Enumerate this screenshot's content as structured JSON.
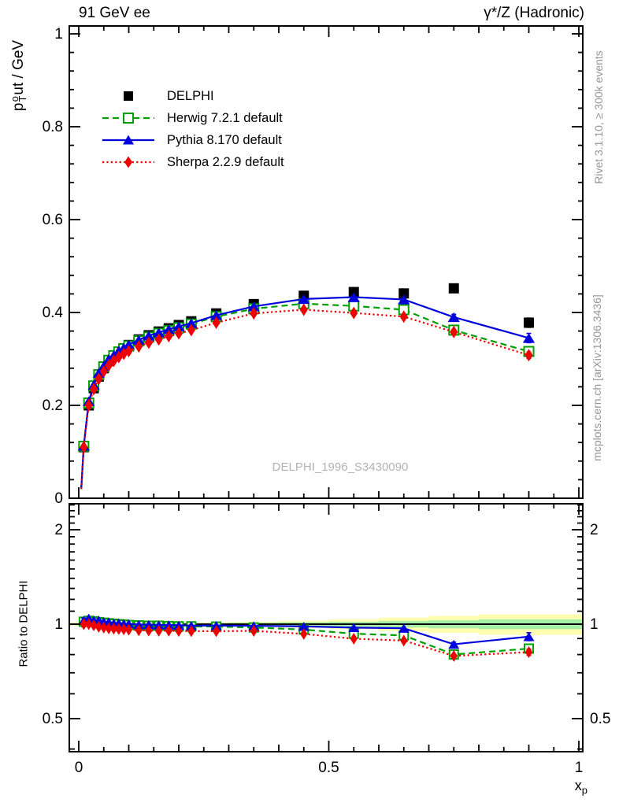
{
  "page": {
    "title_left": "91 GeV ee",
    "title_right": "γ*/Z (Hadronic)",
    "watermark": "DELPHI_1996_S3430090",
    "rivet_note": "Rivet 3.1.10, ≥ 300k events",
    "mcplots_note": "mcplots.cern.ch [arXiv:1306.3436]"
  },
  "chart_data": {
    "type": "line",
    "title": "91 GeV ee — γ*/Z (Hadronic)",
    "xlabel": "x_p",
    "xlabel_parts": {
      "base": "x",
      "sub": "p"
    },
    "xlim": [
      -0.019,
      1.008
    ],
    "xticks": [
      0,
      0.5,
      1
    ],
    "xtick_labels": [
      "0",
      "0.5",
      "1"
    ],
    "grid": false,
    "legend_position": "upper-left",
    "main_panel": {
      "ylabel": "p_T^out / GeV",
      "ylabel_parts": {
        "base": "p",
        "sup": "o",
        "sub": "T",
        "rest": "ut / GeV"
      },
      "yscale": "linear",
      "ylim": [
        0,
        1.017
      ],
      "yticks": [
        0,
        0.2,
        0.4,
        0.6,
        0.8,
        1
      ],
      "ytick_labels": [
        "0",
        "0.2",
        "0.4",
        "0.6",
        "0.8",
        "1"
      ],
      "minor_tick_step": 0.04
    },
    "ratio_panel": {
      "ylabel": "Ratio to DELPHI",
      "yscale": "log",
      "ylim": [
        0.39,
        2.42
      ],
      "yticks": [
        0.5,
        1,
        2
      ],
      "ytick_labels": [
        "0.5",
        "1",
        "2"
      ],
      "minor_ticks": [
        0.4,
        0.6,
        0.7,
        0.8,
        0.9,
        1.1,
        1.2,
        1.3,
        1.4,
        1.5,
        1.6,
        1.7,
        1.8,
        1.9,
        2.1,
        2.2,
        2.3,
        2.4
      ],
      "reference_line": 1,
      "uncertainty_bands": [
        {
          "x0": 0.0,
          "x1": 0.3,
          "yellow": 0.012,
          "green": 0.008
        },
        {
          "x0": 0.3,
          "x1": 0.4,
          "yellow": 0.018,
          "green": 0.011
        },
        {
          "x0": 0.4,
          "x1": 0.5,
          "yellow": 0.026,
          "green": 0.014
        },
        {
          "x0": 0.5,
          "x1": 0.6,
          "yellow": 0.036,
          "green": 0.018
        },
        {
          "x0": 0.6,
          "x1": 0.7,
          "yellow": 0.05,
          "green": 0.024
        },
        {
          "x0": 0.7,
          "x1": 0.8,
          "yellow": 0.062,
          "green": 0.03
        },
        {
          "x0": 0.8,
          "x1": 1.0,
          "yellow": 0.075,
          "green": 0.036
        }
      ],
      "band_colors": {
        "yellow": "#ffffb0",
        "green": "#a6f0a6"
      }
    },
    "x": [
      0.01,
      0.02,
      0.03,
      0.04,
      0.05,
      0.06,
      0.07,
      0.08,
      0.09,
      0.1,
      0.12,
      0.14,
      0.16,
      0.18,
      0.2,
      0.225,
      0.275,
      0.35,
      0.45,
      0.55,
      0.65,
      0.75,
      0.9
    ],
    "series": [
      {
        "name": "DELPHI",
        "kind": "data",
        "color": "#000000",
        "line": "none",
        "marker": "square-filled",
        "values": [
          0.11,
          0.2,
          0.237,
          0.262,
          0.28,
          0.295,
          0.306,
          0.315,
          0.323,
          0.33,
          0.342,
          0.351,
          0.359,
          0.366,
          0.373,
          0.381,
          0.398,
          0.418,
          0.436,
          0.444,
          0.441,
          0.452,
          0.378
        ],
        "errors": [
          0.003,
          0.003,
          0.003,
          0.003,
          0.003,
          0.003,
          0.003,
          0.003,
          0.003,
          0.003,
          0.003,
          0.003,
          0.003,
          0.003,
          0.003,
          0.003,
          0.004,
          0.004,
          0.005,
          0.006,
          0.007,
          0.009,
          0.01
        ]
      },
      {
        "name": "Herwig 7.2.1 default",
        "kind": "mc",
        "color": "#00a000",
        "line": "dashed",
        "marker": "square-open",
        "values": [
          0.112,
          0.205,
          0.242,
          0.266,
          0.283,
          0.297,
          0.307,
          0.315,
          0.322,
          0.328,
          0.339,
          0.347,
          0.355,
          0.361,
          0.367,
          0.375,
          0.391,
          0.408,
          0.419,
          0.414,
          0.406,
          0.362,
          0.316
        ],
        "errors": [
          0.002,
          0.002,
          0.002,
          0.002,
          0.002,
          0.002,
          0.002,
          0.002,
          0.002,
          0.002,
          0.002,
          0.002,
          0.002,
          0.002,
          0.002,
          0.002,
          0.002,
          0.002,
          0.002,
          0.002,
          0.002,
          0.004,
          0.005
        ]
      },
      {
        "name": "Pythia 8.170 default",
        "kind": "mc",
        "color": "#0000dd",
        "line": "solid",
        "marker": "triangle-filled",
        "values": [
          0.113,
          0.209,
          0.244,
          0.27,
          0.285,
          0.3,
          0.308,
          0.318,
          0.324,
          0.331,
          0.341,
          0.35,
          0.357,
          0.364,
          0.37,
          0.377,
          0.394,
          0.413,
          0.429,
          0.433,
          0.428,
          0.39,
          0.345
        ],
        "errors": [
          0.002,
          0.002,
          0.002,
          0.002,
          0.002,
          0.002,
          0.002,
          0.002,
          0.002,
          0.002,
          0.002,
          0.002,
          0.002,
          0.002,
          0.002,
          0.002,
          0.002,
          0.002,
          0.002,
          0.002,
          0.002,
          0.006,
          0.01
        ]
      },
      {
        "name": "Sherpa 2.2.9 default",
        "kind": "mc",
        "color": "#ee0000",
        "line": "dotted",
        "marker": "diamond-filled",
        "values": [
          0.11,
          0.2,
          0.235,
          0.257,
          0.273,
          0.286,
          0.296,
          0.304,
          0.311,
          0.317,
          0.327,
          0.335,
          0.342,
          0.349,
          0.355,
          0.362,
          0.378,
          0.398,
          0.406,
          0.399,
          0.391,
          0.358,
          0.308
        ],
        "errors": [
          0.002,
          0.002,
          0.002,
          0.002,
          0.002,
          0.002,
          0.002,
          0.002,
          0.002,
          0.002,
          0.002,
          0.002,
          0.002,
          0.002,
          0.002,
          0.002,
          0.002,
          0.002,
          0.002,
          0.002,
          0.002,
          0.005,
          0.007
        ]
      }
    ]
  }
}
